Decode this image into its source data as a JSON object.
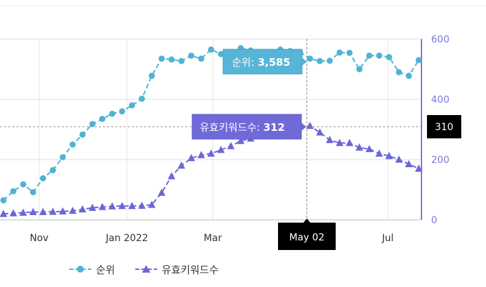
{
  "chart_data": {
    "type": "line",
    "x_labels": [
      "Nov",
      "Jan 2022",
      "Mar",
      "May 02",
      "Jul"
    ],
    "y_right_ticks": [
      "600",
      "400",
      "200",
      "0"
    ],
    "ylim_right": [
      0,
      600
    ],
    "series": [
      {
        "name": "순위",
        "color": "#4fb3d4",
        "marker": "circle",
        "values": [
          65,
          95,
          118,
          92,
          138,
          165,
          208,
          250,
          283,
          318,
          335,
          352,
          360,
          380,
          402,
          478,
          535,
          532,
          527,
          545,
          535,
          565,
          550,
          555,
          570,
          562,
          548,
          553,
          565,
          560,
          555,
          535,
          527,
          528,
          555,
          554,
          500,
          545,
          545,
          540,
          490,
          478,
          530
        ]
      },
      {
        "name": "유효키워드수",
        "color": "#6c67d6",
        "marker": "triangle",
        "values": [
          20,
          22,
          24,
          26,
          26,
          27,
          28,
          30,
          35,
          40,
          43,
          45,
          46,
          46,
          47,
          50,
          90,
          145,
          180,
          205,
          215,
          220,
          232,
          245,
          262,
          270,
          280,
          290,
          300,
          305,
          310,
          312,
          290,
          265,
          255,
          255,
          240,
          235,
          220,
          212,
          200,
          185,
          170
        ]
      }
    ],
    "tooltip": {
      "rank_label": "순위: ",
      "rank_value": "3,585",
      "kw_label": "유효키워드수: ",
      "kw_value": "312"
    },
    "crosshair": {
      "x_label": "May 02",
      "y_label": "310"
    },
    "legend_placement": "bottom-left",
    "grid": true
  }
}
